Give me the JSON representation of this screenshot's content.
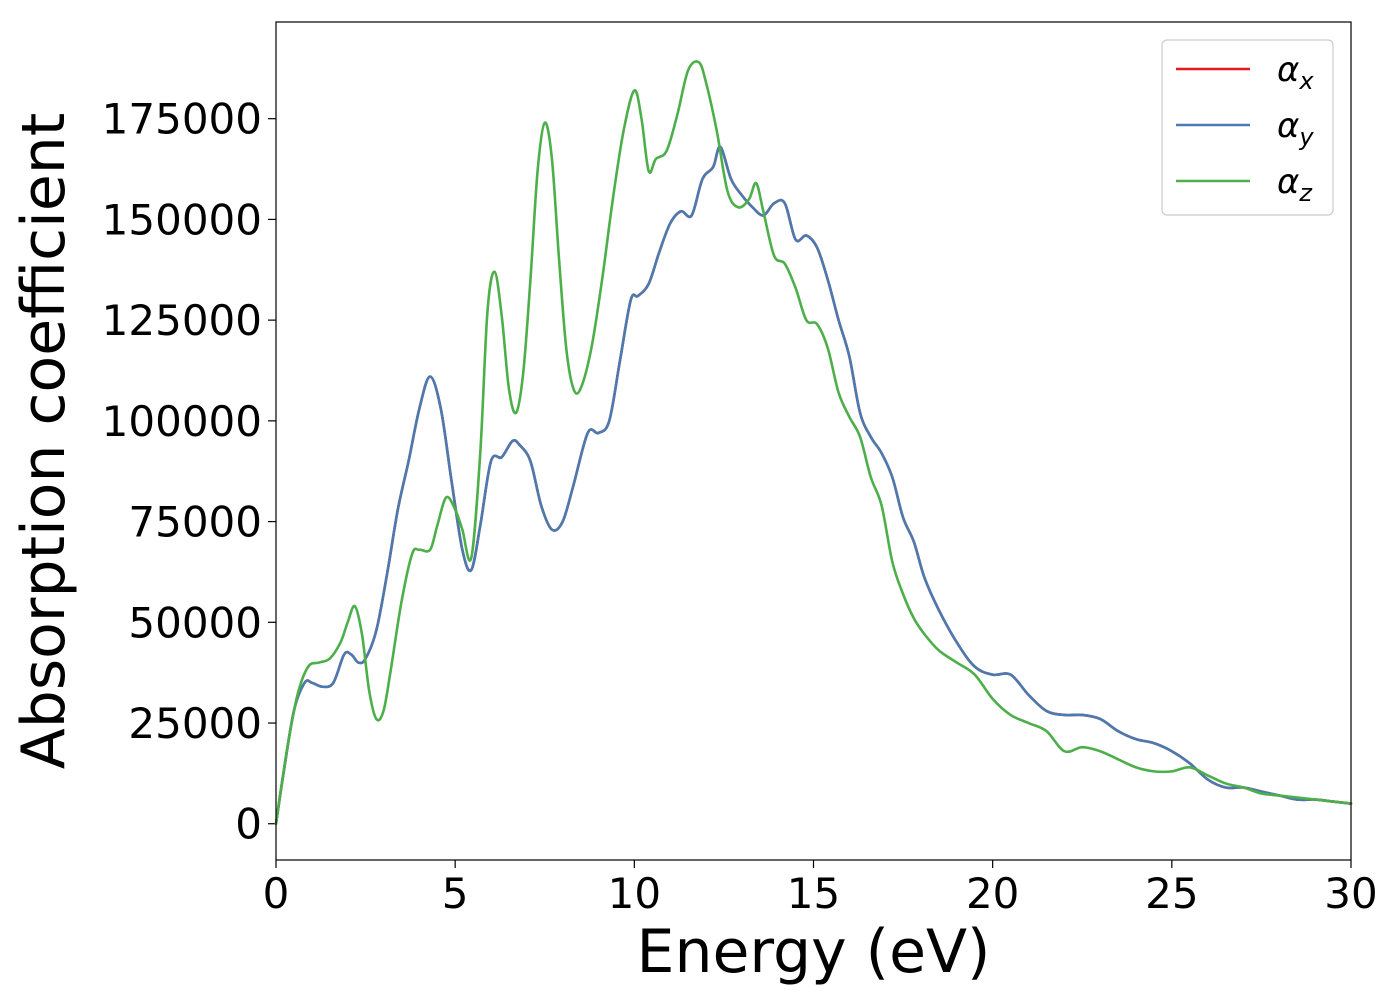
{
  "chart_data": {
    "type": "line",
    "title": "",
    "xlabel": "Energy (eV)",
    "ylabel": "Absorption coefficient",
    "xlim": [
      0,
      30
    ],
    "ylim": [
      -9000,
      199000
    ],
    "xticks": [
      0,
      5,
      10,
      15,
      20,
      25,
      30
    ],
    "yticks": [
      0,
      25000,
      50000,
      75000,
      100000,
      125000,
      150000,
      175000
    ],
    "grid": false,
    "legend_position": "top-right",
    "series": [
      {
        "name": "α",
        "subscript": "x",
        "color": "#e41a1c",
        "x": [
          0,
          0.2,
          0.5,
          0.8,
          1.0,
          1.3,
          1.6,
          1.9,
          2.1,
          2.3,
          2.5,
          2.8,
          3.1,
          3.4,
          3.7,
          4.0,
          4.3,
          4.6,
          4.9,
          5.2,
          5.45,
          5.7,
          6.0,
          6.3,
          6.6,
          6.8,
          7.1,
          7.4,
          7.7,
          8.0,
          8.3,
          8.7,
          9.0,
          9.3,
          9.6,
          9.9,
          10.1,
          10.4,
          10.7,
          11.0,
          11.3,
          11.6,
          11.9,
          12.2,
          12.4,
          12.7,
          13.0,
          13.3,
          13.6,
          13.9,
          14.2,
          14.5,
          14.8,
          15.1,
          15.4,
          15.7,
          16.0,
          16.3,
          16.6,
          16.9,
          17.2,
          17.5,
          17.8,
          18.1,
          18.5,
          19.0,
          19.5,
          20.0,
          20.5,
          21.0,
          21.5,
          22.0,
          22.5,
          23.0,
          23.5,
          24.0,
          24.5,
          25.0,
          25.5,
          26.0,
          26.5,
          27.0,
          27.5,
          28.0,
          28.5,
          29.0,
          29.5,
          30.0
        ],
        "values": [
          0,
          12000,
          28000,
          35000,
          35000,
          34000,
          35000,
          42000,
          42000,
          40000,
          41000,
          48000,
          62000,
          78000,
          90000,
          103000,
          111000,
          103000,
          85000,
          68000,
          63000,
          74000,
          90000,
          91000,
          95000,
          94000,
          90000,
          79000,
          73000,
          75000,
          84000,
          97000,
          97000,
          100000,
          115000,
          130000,
          131000,
          134000,
          142000,
          149000,
          152000,
          151000,
          160000,
          163000,
          168000,
          160000,
          156000,
          153000,
          151000,
          154000,
          154000,
          145000,
          146000,
          143000,
          135000,
          125000,
          116000,
          102000,
          96000,
          92000,
          86000,
          76000,
          70000,
          61000,
          53000,
          45000,
          39000,
          37000,
          37000,
          32000,
          28000,
          27000,
          27000,
          26000,
          23000,
          21000,
          20000,
          18000,
          15000,
          11000,
          9000,
          9000,
          8000,
          7000,
          6000,
          6000,
          5500,
          5000
        ]
      },
      {
        "name": "α",
        "subscript": "y",
        "color": "#4a7bb0",
        "x": [
          0,
          0.2,
          0.5,
          0.8,
          1.0,
          1.3,
          1.6,
          1.9,
          2.1,
          2.3,
          2.5,
          2.8,
          3.1,
          3.4,
          3.7,
          4.0,
          4.3,
          4.6,
          4.9,
          5.2,
          5.45,
          5.7,
          6.0,
          6.3,
          6.6,
          6.8,
          7.1,
          7.4,
          7.7,
          8.0,
          8.3,
          8.7,
          9.0,
          9.3,
          9.6,
          9.9,
          10.1,
          10.4,
          10.7,
          11.0,
          11.3,
          11.6,
          11.9,
          12.2,
          12.4,
          12.7,
          13.0,
          13.3,
          13.6,
          13.9,
          14.2,
          14.5,
          14.8,
          15.1,
          15.4,
          15.7,
          16.0,
          16.3,
          16.6,
          16.9,
          17.2,
          17.5,
          17.8,
          18.1,
          18.5,
          19.0,
          19.5,
          20.0,
          20.5,
          21.0,
          21.5,
          22.0,
          22.5,
          23.0,
          23.5,
          24.0,
          24.5,
          25.0,
          25.5,
          26.0,
          26.5,
          27.0,
          27.5,
          28.0,
          28.5,
          29.0,
          29.5,
          30.0
        ],
        "values": [
          0,
          12000,
          28000,
          35000,
          35000,
          34000,
          35000,
          42000,
          42000,
          40000,
          41000,
          48000,
          62000,
          78000,
          90000,
          103000,
          111000,
          103000,
          85000,
          68000,
          63000,
          74000,
          90000,
          91000,
          95000,
          94000,
          90000,
          79000,
          73000,
          75000,
          84000,
          97000,
          97000,
          100000,
          115000,
          130000,
          131000,
          134000,
          142000,
          149000,
          152000,
          151000,
          160000,
          163000,
          168000,
          160000,
          156000,
          153000,
          151000,
          154000,
          154000,
          145000,
          146000,
          143000,
          135000,
          125000,
          116000,
          102000,
          96000,
          92000,
          86000,
          76000,
          70000,
          61000,
          53000,
          45000,
          39000,
          37000,
          37000,
          32000,
          28000,
          27000,
          27000,
          26000,
          23000,
          21000,
          20000,
          18000,
          15000,
          11000,
          9000,
          9000,
          8000,
          7000,
          6000,
          6000,
          5500,
          5000
        ]
      },
      {
        "name": "α",
        "subscript": "z",
        "color": "#4daf4a",
        "x": [
          0,
          0.3,
          0.6,
          0.9,
          1.2,
          1.5,
          1.8,
          2.0,
          2.2,
          2.4,
          2.6,
          2.8,
          3.0,
          3.2,
          3.5,
          3.8,
          4.0,
          4.3,
          4.5,
          4.75,
          5.0,
          5.2,
          5.45,
          5.7,
          5.9,
          6.1,
          6.3,
          6.5,
          6.7,
          6.9,
          7.1,
          7.3,
          7.5,
          7.7,
          7.9,
          8.1,
          8.3,
          8.5,
          8.8,
          9.1,
          9.4,
          9.7,
          10.0,
          10.2,
          10.4,
          10.6,
          10.9,
          11.2,
          11.5,
          11.8,
          12.0,
          12.3,
          12.6,
          12.9,
          13.2,
          13.4,
          13.6,
          13.9,
          14.2,
          14.5,
          14.8,
          15.1,
          15.4,
          15.7,
          16.0,
          16.3,
          16.6,
          16.9,
          17.2,
          17.5,
          17.8,
          18.1,
          18.5,
          19.0,
          19.5,
          20.0,
          20.5,
          21.0,
          21.5,
          22.0,
          22.5,
          23.0,
          23.5,
          24.0,
          24.5,
          25.0,
          25.5,
          26.0,
          26.5,
          27.0,
          27.5,
          28.0,
          28.5,
          29.0,
          29.5,
          30.0
        ],
        "values": [
          0,
          18000,
          32000,
          39000,
          40000,
          41000,
          45000,
          50000,
          54000,
          47000,
          33000,
          26000,
          28000,
          38000,
          55000,
          67000,
          68000,
          68000,
          74000,
          81000,
          78000,
          73000,
          66000,
          92000,
          127000,
          137000,
          126000,
          108000,
          102000,
          112000,
          135000,
          162000,
          174000,
          165000,
          140000,
          118000,
          108000,
          108000,
          118000,
          135000,
          155000,
          172000,
          182000,
          175000,
          162000,
          165000,
          167000,
          176000,
          187000,
          189000,
          184000,
          172000,
          157000,
          153000,
          155000,
          159000,
          152000,
          141000,
          139000,
          133000,
          125000,
          124000,
          118000,
          107000,
          101000,
          96000,
          86000,
          79000,
          65000,
          57000,
          51000,
          47000,
          43000,
          40000,
          37000,
          31000,
          27000,
          25000,
          23000,
          18000,
          19000,
          18000,
          16000,
          14000,
          13000,
          13000,
          14000,
          12000,
          10000,
          9000,
          7500,
          7000,
          6500,
          6000,
          5500,
          5000
        ]
      }
    ]
  }
}
